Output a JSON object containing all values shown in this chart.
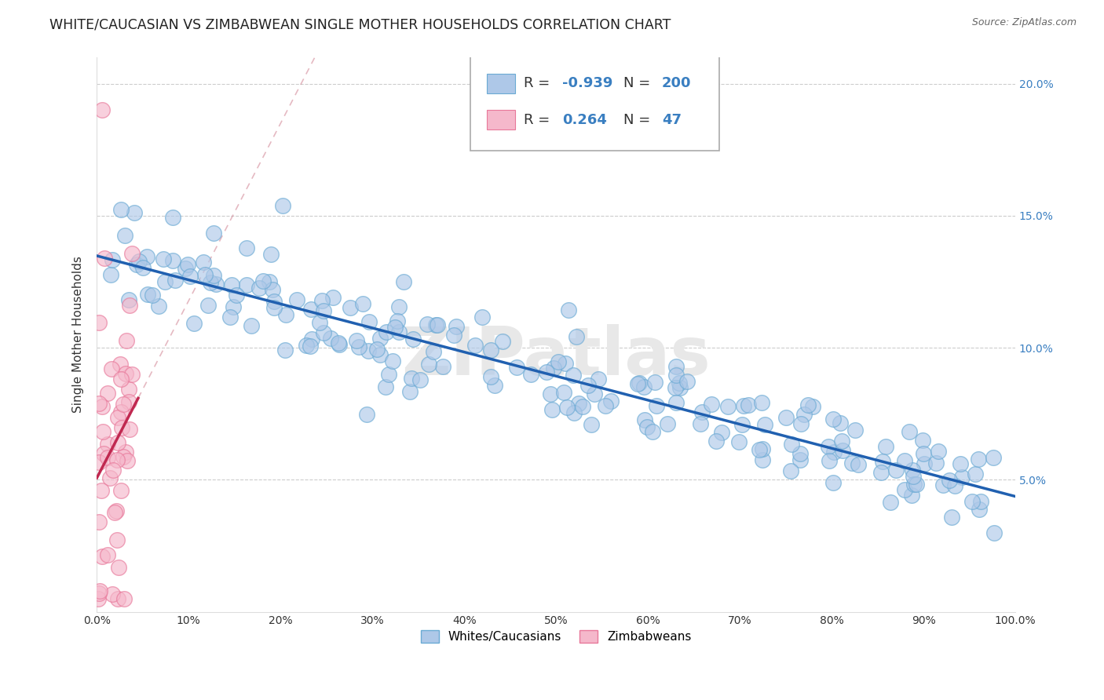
{
  "title": "WHITE/CAUCASIAN VS ZIMBABWEAN SINGLE MOTHER HOUSEHOLDS CORRELATION CHART",
  "source": "Source: ZipAtlas.com",
  "ylabel": "Single Mother Households",
  "blue_R": -0.939,
  "blue_N": 200,
  "pink_R": 0.264,
  "pink_N": 47,
  "blue_face_color": "#aec8e8",
  "blue_edge_color": "#6aaad4",
  "pink_face_color": "#f5b8cb",
  "pink_edge_color": "#e8789a",
  "blue_line_color": "#2060b0",
  "pink_line_color": "#c02850",
  "pink_dash_color": "#d08090",
  "legend_blue_label": "Whites/Caucasians",
  "legend_pink_label": "Zimbabweans",
  "val_color": "#3a7fc1",
  "watermark": "ZIPatlas",
  "xlim": [
    0,
    1.0
  ],
  "ylim": [
    0,
    0.21
  ],
  "y_ticks": [
    0.05,
    0.1,
    0.15,
    0.2
  ],
  "y_tick_labels": [
    "5.0%",
    "10.0%",
    "15.0%",
    "20.0%"
  ],
  "x_ticks": [
    0.0,
    0.1,
    0.2,
    0.3,
    0.4,
    0.5,
    0.6,
    0.7,
    0.8,
    0.9,
    1.0
  ],
  "x_tick_labels": [
    "0.0%",
    "10%",
    "20%",
    "30%",
    "40%",
    "50%",
    "60%",
    "70%",
    "80%",
    "90%",
    "100.0%"
  ]
}
